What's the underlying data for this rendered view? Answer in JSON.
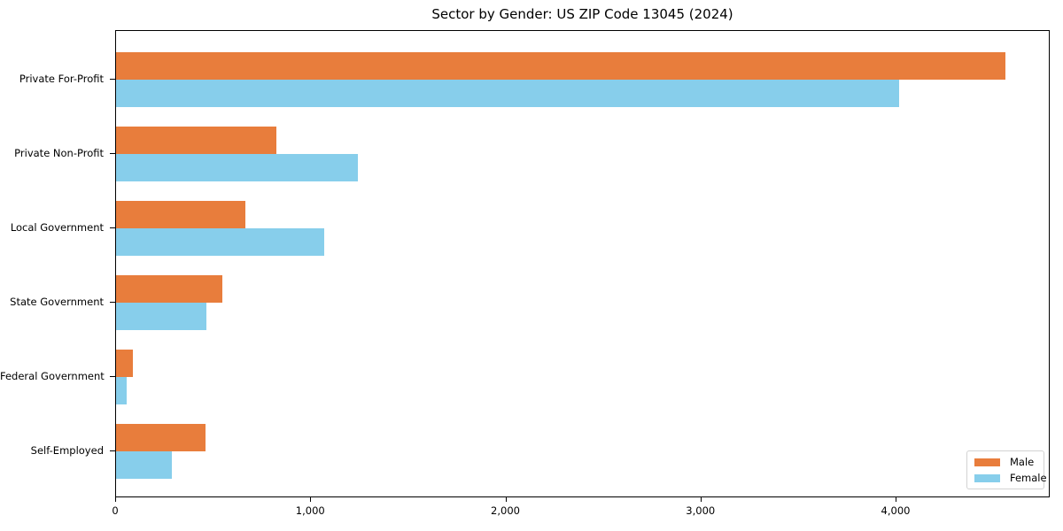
{
  "chart_data": {
    "type": "bar",
    "orientation": "horizontal",
    "title": "Sector by Gender: US ZIP Code 13045 (2024)",
    "categories": [
      "Private For-Profit",
      "Private Non-Profit",
      "Local Government",
      "State Government",
      "Federal Government",
      "Self-Employed"
    ],
    "series": [
      {
        "name": "Male",
        "color": "#e87d3c",
        "values": [
          4565,
          823,
          664,
          546,
          88,
          459
        ]
      },
      {
        "name": "Female",
        "color": "#87ceeb",
        "values": [
          4020,
          1243,
          1068,
          462,
          53,
          285
        ]
      }
    ],
    "xlabel": "",
    "ylabel": "",
    "xlim": [
      0,
      4790
    ],
    "x_ticks": [
      0,
      1000,
      2000,
      3000,
      4000
    ],
    "x_tick_labels": [
      "0",
      "1,000",
      "2,000",
      "3,000",
      "4,000"
    ],
    "grid": false,
    "legend_position": "lower right",
    "background_color": "#ffffff",
    "text_color": "#000000"
  }
}
